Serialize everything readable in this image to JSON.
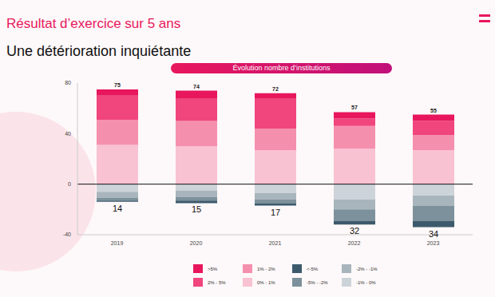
{
  "chart_data": {
    "type": "bar",
    "title": "Résultat d’exercice sur 5 ans",
    "subtitle": "Une détérioration inquiétante",
    "annotations": [
      {
        "text": "Évolution nombre d’institutions"
      }
    ],
    "categories": [
      "2019",
      "2020",
      "2021",
      "2022",
      "2023"
    ],
    "series": [
      {
        "name": ">5%",
        "color": "#e8175d",
        "values": [
          5,
          6,
          4,
          5,
          5
        ]
      },
      {
        "name": "2% - 5%",
        "color": "#f0457d",
        "values": [
          19,
          18,
          24,
          6,
          11
        ]
      },
      {
        "name": "1% - 2%",
        "color": "#f58fae",
        "values": [
          20,
          20,
          17,
          18,
          12
        ]
      },
      {
        "name": "0% - 1%",
        "color": "#f9c2d2",
        "values": [
          31,
          30,
          27,
          28,
          27
        ]
      },
      {
        "name": "<-5%",
        "color": "#3d5a6c",
        "values": [
          -1,
          -2,
          -2,
          -3,
          -5
        ]
      },
      {
        "name": "-5% - -2%",
        "color": "#7d919c",
        "values": [
          -2,
          -3,
          -3,
          -9,
          -12
        ]
      },
      {
        "name": "-2% - -1%",
        "color": "#a9b5bd",
        "values": [
          -5,
          -5,
          -5,
          -8,
          -8
        ]
      },
      {
        "name": "-1% - 0%",
        "color": "#cdd4d9",
        "values": [
          -6,
          -5,
          -7,
          -12,
          -9
        ]
      }
    ],
    "totals": {
      "above": [
        75,
        74,
        72,
        57,
        55
      ],
      "below": [
        {
          "value": -14,
          "label": "14"
        },
        {
          "value": -15,
          "label": "15"
        },
        {
          "value": -17,
          "label": "17"
        },
        {
          "value": -32,
          "label": "32"
        },
        {
          "value": -34,
          "label": "34"
        }
      ]
    },
    "ylim": [
      -40,
      80
    ],
    "yticks": [
      -40,
      0,
      40,
      80
    ],
    "grid": false,
    "stacked": true,
    "legend": "bottom"
  }
}
